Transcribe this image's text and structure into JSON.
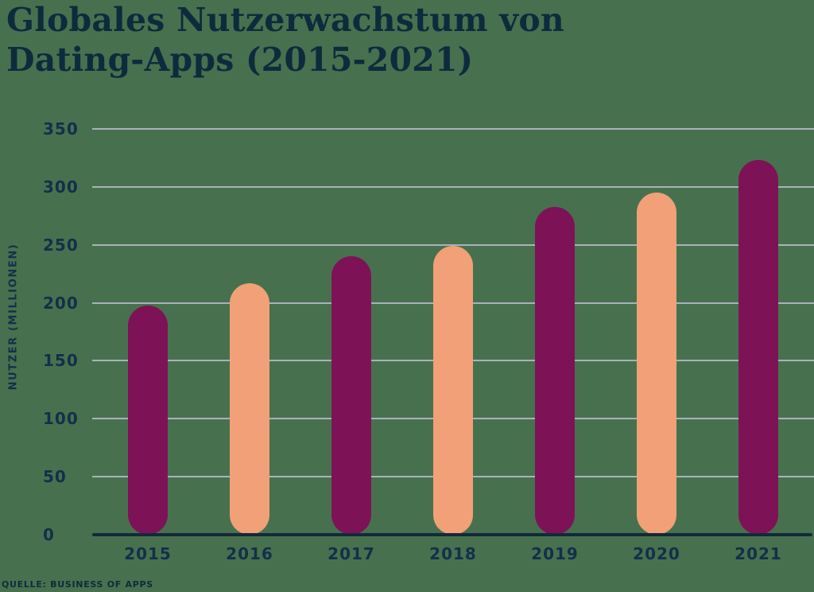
{
  "page": {
    "background_color": "#47714E"
  },
  "title": {
    "line1": "Globales Nutzerwachstum von",
    "line2": "Dating-Apps (2015-2021)",
    "color": "#0E2B3D"
  },
  "source": {
    "text": "QUELLE: BUSINESS OF APPS"
  },
  "chart_data": {
    "type": "bar",
    "title": "Globales Nutzerwachstum von Dating-Apps (2015-2021)",
    "categories": [
      "2015",
      "2016",
      "2017",
      "2018",
      "2019",
      "2020",
      "2021"
    ],
    "values": [
      198,
      217,
      240,
      249,
      283,
      295,
      323
    ],
    "series": [
      {
        "name": "Nutzer (Millionen)",
        "values": [
          198,
          217,
          240,
          249,
          283,
          295,
          323
        ]
      }
    ],
    "xlabel": "",
    "ylabel": "NUTZER (MILLIONEN)",
    "ylim": [
      0,
      350
    ],
    "yticks": [
      0,
      50,
      100,
      150,
      200,
      250,
      300,
      350
    ],
    "grid": true,
    "legend": false,
    "bar_colors": [
      "#7E1257",
      "#F2A077",
      "#7E1257",
      "#F2A077",
      "#7E1257",
      "#F2A077",
      "#7E1257"
    ]
  },
  "colors": {
    "background": "#47714E",
    "bar_magenta": "#7E1257",
    "bar_orange": "#F2A077",
    "text_navy": "#12304A",
    "title_navy": "#0E2B3D",
    "gridline": "#A9B2BB",
    "axis_line": "#13293B"
  }
}
